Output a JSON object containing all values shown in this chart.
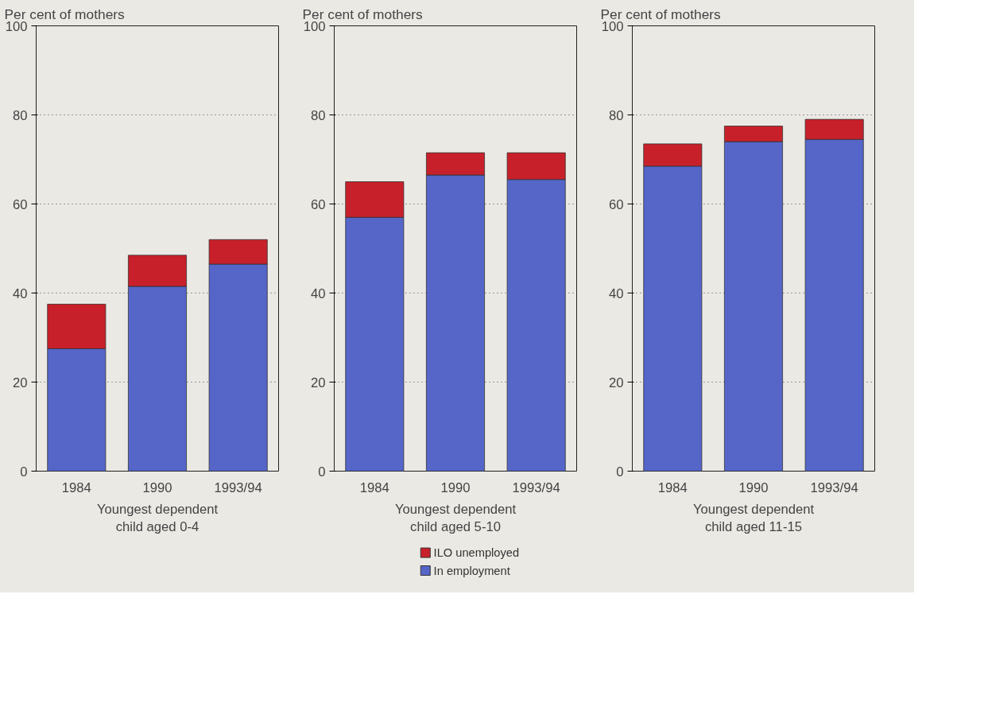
{
  "chart_data": [
    {
      "type": "bar",
      "stacked": true,
      "ylabel": "Per cent of mothers",
      "xlabel": "Youngest dependent\nchild aged 0-4",
      "categories": [
        "1984",
        "1990",
        "1993/94"
      ],
      "ylim": [
        0,
        100
      ],
      "yticks": [
        0,
        20,
        40,
        60,
        80,
        100
      ],
      "grid": "y",
      "series": [
        {
          "color": "#5565c8",
          "values": [
            27.5,
            41.5,
            46.5
          ]
        },
        {
          "color": "#c8202a",
          "values": [
            10,
            7,
            5.5
          ]
        }
      ]
    },
    {
      "type": "bar",
      "stacked": true,
      "ylabel": "Per cent of mothers",
      "xlabel": "Youngest dependent\nchild aged 5-10",
      "categories": [
        "1984",
        "1990",
        "1993/94"
      ],
      "ylim": [
        0,
        100
      ],
      "yticks": [
        0,
        20,
        40,
        60,
        80,
        100
      ],
      "grid": "y",
      "legend": "bottom",
      "series": [
        {
          "name": "In employment",
          "color": "#5565c8",
          "values": [
            57,
            66.5,
            65.5
          ]
        },
        {
          "name": "ILO unemployed",
          "color": "#c8202a",
          "values": [
            8,
            5,
            6
          ]
        }
      ]
    },
    {
      "type": "bar",
      "stacked": true,
      "ylabel": "Per cent of mothers",
      "xlabel": "Youngest dependent\nchild aged 11-15",
      "categories": [
        "1984",
        "1990",
        "1993/94"
      ],
      "ylim": [
        0,
        100
      ],
      "yticks": [
        0,
        20,
        40,
        60,
        80,
        100
      ],
      "grid": "y",
      "series": [
        {
          "color": "#5565c8",
          "values": [
            68.5,
            74,
            74.5
          ]
        },
        {
          "color": "#c8202a",
          "values": [
            5,
            3.5,
            4.5
          ]
        }
      ]
    }
  ]
}
